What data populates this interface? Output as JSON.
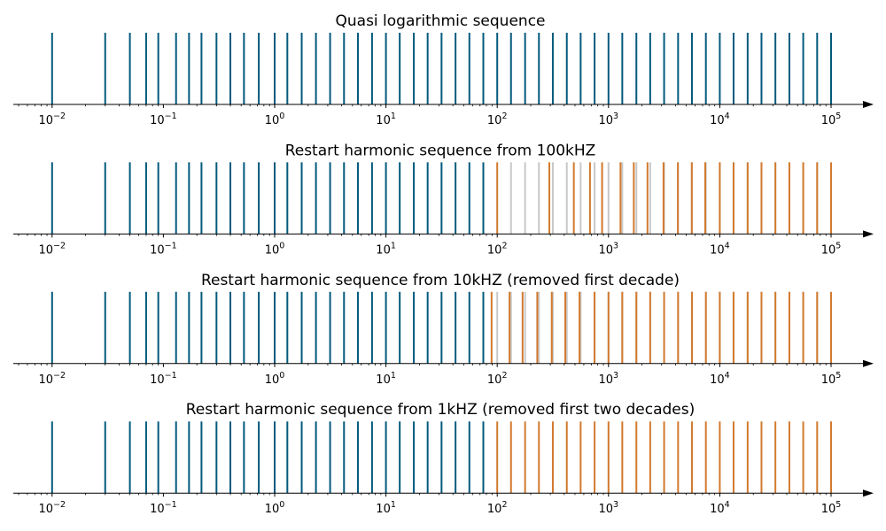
{
  "chart_data": [
    {
      "type": "stem",
      "title": "Quasi logarithmic sequence",
      "x_scale": "log",
      "xlim": [
        0.005,
        200000
      ],
      "tick_labels": [
        {
          "base": "10",
          "exp": "−2",
          "value": 0.01
        },
        {
          "base": "10",
          "exp": "−1",
          "value": 0.1
        },
        {
          "base": "10",
          "exp": "0",
          "value": 1
        },
        {
          "base": "10",
          "exp": "1",
          "value": 10
        },
        {
          "base": "10",
          "exp": "2",
          "value": 100
        },
        {
          "base": "10",
          "exp": "3",
          "value": 1000
        },
        {
          "base": "10",
          "exp": "4",
          "value": 10000
        },
        {
          "base": "10",
          "exp": "5",
          "value": 100000
        }
      ],
      "series": [
        {
          "color": "#045a7d",
          "x": [
            0.01,
            0.03,
            0.05,
            0.07,
            0.09,
            0.13,
            0.17,
            0.22,
            0.3,
            0.4,
            0.53,
            0.72,
            1.0,
            1.3,
            1.75,
            2.35,
            3.15,
            4.2,
            5.6,
            7.5,
            10,
            13.3,
            17.8,
            23.7,
            31.6,
            42.2,
            56.2,
            75,
            100,
            133,
            178,
            237,
            316,
            422,
            562,
            750,
            1000,
            1330,
            1780,
            2370,
            3160,
            4220,
            5620,
            7500,
            10000,
            13300,
            17800,
            23700,
            31600,
            42200,
            56200,
            75000,
            100000
          ]
        }
      ]
    },
    {
      "type": "stem",
      "title": "Restart harmonic sequence from 100kHZ",
      "x_scale": "log",
      "xlim": [
        0.005,
        200000
      ],
      "tick_labels": [
        {
          "base": "10",
          "exp": "−2",
          "value": 0.01
        },
        {
          "base": "10",
          "exp": "−1",
          "value": 0.1
        },
        {
          "base": "10",
          "exp": "0",
          "value": 1
        },
        {
          "base": "10",
          "exp": "1",
          "value": 10
        },
        {
          "base": "10",
          "exp": "2",
          "value": 100
        },
        {
          "base": "10",
          "exp": "3",
          "value": 1000
        },
        {
          "base": "10",
          "exp": "4",
          "value": 10000
        },
        {
          "base": "10",
          "exp": "5",
          "value": 100000
        }
      ],
      "series": [
        {
          "color": "#c8c8c8",
          "x": [
            133,
            178,
            237,
            316,
            422,
            562,
            750,
            1000,
            1330,
            1780,
            2370,
            3160,
            4220,
            5620,
            7500,
            10000,
            13300,
            17800,
            23700,
            31600,
            42200,
            56200,
            75000
          ]
        },
        {
          "color": "#045a7d",
          "x": [
            0.01,
            0.03,
            0.05,
            0.07,
            0.09,
            0.13,
            0.17,
            0.22,
            0.3,
            0.4,
            0.53,
            0.72,
            1.0,
            1.3,
            1.75,
            2.35,
            3.15,
            4.2,
            5.6,
            7.5,
            10,
            13.3,
            17.8,
            23.7,
            31.6,
            42.2,
            56.2,
            75
          ]
        },
        {
          "color": "#d27a2f",
          "x": [
            100,
            294,
            488,
            682,
            876,
            1282,
            1688,
            2240,
            3120,
            4200,
            5600,
            7400,
            10000,
            13300,
            17800,
            23700,
            31600,
            42200,
            56200,
            75000,
            100000
          ]
        }
      ]
    },
    {
      "type": "stem",
      "title": "Restart harmonic sequence from 10kHZ (removed first decade)",
      "x_scale": "log",
      "xlim": [
        0.005,
        200000
      ],
      "tick_labels": [
        {
          "base": "10",
          "exp": "−2",
          "value": 0.01
        },
        {
          "base": "10",
          "exp": "−1",
          "value": 0.1
        },
        {
          "base": "10",
          "exp": "0",
          "value": 1
        },
        {
          "base": "10",
          "exp": "1",
          "value": 10
        },
        {
          "base": "10",
          "exp": "2",
          "value": 100
        },
        {
          "base": "10",
          "exp": "3",
          "value": 1000
        },
        {
          "base": "10",
          "exp": "4",
          "value": 10000
        },
        {
          "base": "10",
          "exp": "5",
          "value": 100000
        }
      ],
      "series": [
        {
          "color": "#c8c8c8",
          "x": [
            100,
            133,
            178,
            237,
            316,
            422,
            562,
            750,
            1000,
            1330,
            1780,
            2370,
            3160,
            4220,
            5620,
            7500,
            10000,
            13300,
            17800,
            23700,
            31600,
            42200,
            56200,
            75000
          ]
        },
        {
          "color": "#045a7d",
          "x": [
            0.01,
            0.03,
            0.05,
            0.07,
            0.09,
            0.13,
            0.17,
            0.22,
            0.3,
            0.4,
            0.53,
            0.72,
            1.0,
            1.3,
            1.75,
            2.35,
            3.15,
            4.2,
            5.6,
            7.5,
            10,
            13.3,
            17.8,
            23.7,
            31.6,
            42.2,
            56.2,
            75
          ]
        },
        {
          "color": "#d27a2f",
          "x": [
            89,
            129,
            169,
            229,
            309,
            409,
            549,
            749,
            1000,
            1330,
            1780,
            2370,
            3160,
            4220,
            5620,
            7500,
            10000,
            13300,
            17800,
            23700,
            31600,
            42200,
            56200,
            75000,
            100000
          ]
        }
      ]
    },
    {
      "type": "stem",
      "title": "Restart harmonic sequence from 1kHZ (removed first two decades)",
      "x_scale": "log",
      "xlim": [
        0.005,
        200000
      ],
      "tick_labels": [
        {
          "base": "10",
          "exp": "−2",
          "value": 0.01
        },
        {
          "base": "10",
          "exp": "−1",
          "value": 0.1
        },
        {
          "base": "10",
          "exp": "0",
          "value": 1
        },
        {
          "base": "10",
          "exp": "1",
          "value": 10
        },
        {
          "base": "10",
          "exp": "2",
          "value": 100
        },
        {
          "base": "10",
          "exp": "3",
          "value": 1000
        },
        {
          "base": "10",
          "exp": "4",
          "value": 10000
        },
        {
          "base": "10",
          "exp": "5",
          "value": 100000
        }
      ],
      "series": [
        {
          "color": "#045a7d",
          "x": [
            0.01,
            0.03,
            0.05,
            0.07,
            0.09,
            0.13,
            0.17,
            0.22,
            0.3,
            0.4,
            0.53,
            0.72,
            1.0,
            1.3,
            1.75,
            2.35,
            3.15,
            4.2,
            5.6,
            7.5,
            10,
            13.3,
            17.8,
            23.7,
            31.6,
            42.2,
            56.2,
            75
          ]
        },
        {
          "color": "#d27a2f",
          "x": [
            100,
            133,
            178,
            237,
            316,
            422,
            562,
            750,
            1000,
            1330,
            1780,
            2370,
            3160,
            4220,
            5620,
            7500,
            10000,
            13300,
            17800,
            23700,
            31600,
            42200,
            56200,
            75000,
            100000
          ]
        }
      ]
    }
  ]
}
